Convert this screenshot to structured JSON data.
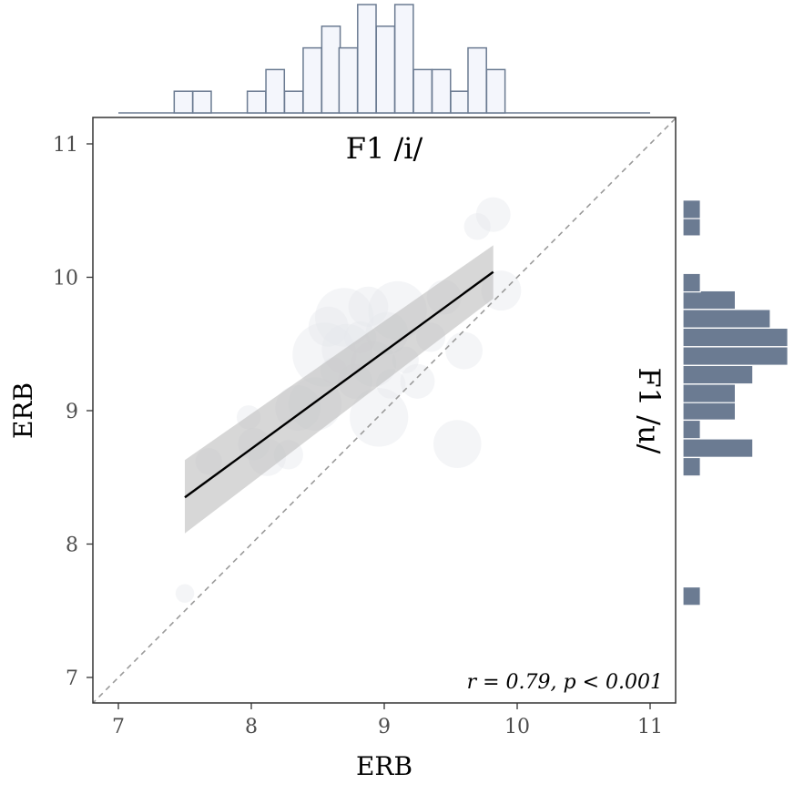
{
  "chart_data": {
    "type": "scatter",
    "x_label": "ERB",
    "y_label": "ERB",
    "x_title": "F1 /i/",
    "y_title": "F1 /u/",
    "x_range": [
      6.8,
      11.2
    ],
    "y_range": [
      6.8,
      11.2
    ],
    "x_ticks": [
      7,
      8,
      9,
      10,
      11
    ],
    "y_ticks": [
      7,
      8,
      9,
      10,
      11
    ],
    "x_tick_labels": [
      "7",
      "8",
      "9",
      "10",
      "11"
    ],
    "y_tick_labels": [
      "7",
      "8",
      "9",
      "10",
      "11"
    ],
    "annotation": "r = 0.79, p < 0.001",
    "identity_line": true,
    "regression": {
      "x_start": 7.5,
      "y_start": 8.35,
      "x_end": 9.82,
      "y_end": 10.04,
      "ci_lower": [
        8.08,
        9.84
      ],
      "ci_upper": [
        8.63,
        10.24
      ]
    },
    "points": [
      {
        "x": 7.5,
        "y": 7.63,
        "r": 0.07
      },
      {
        "x": 7.68,
        "y": 8.62,
        "r": 0.1
      },
      {
        "x": 7.98,
        "y": 8.95,
        "r": 0.09
      },
      {
        "x": 8.02,
        "y": 8.75,
        "r": 0.12
      },
      {
        "x": 8.12,
        "y": 8.65,
        "r": 0.14
      },
      {
        "x": 8.28,
        "y": 8.67,
        "r": 0.11
      },
      {
        "x": 8.35,
        "y": 9.02,
        "r": 0.17
      },
      {
        "x": 8.48,
        "y": 9.05,
        "r": 0.2
      },
      {
        "x": 8.55,
        "y": 9.42,
        "r": 0.24
      },
      {
        "x": 8.58,
        "y": 9.63,
        "r": 0.15
      },
      {
        "x": 8.62,
        "y": 9.3,
        "r": 0.1
      },
      {
        "x": 8.72,
        "y": 9.46,
        "r": 0.19
      },
      {
        "x": 8.7,
        "y": 9.7,
        "r": 0.22
      },
      {
        "x": 8.78,
        "y": 9.22,
        "r": 0.13
      },
      {
        "x": 8.82,
        "y": 9.55,
        "r": 0.12
      },
      {
        "x": 8.88,
        "y": 9.78,
        "r": 0.15
      },
      {
        "x": 8.92,
        "y": 9.35,
        "r": 0.17
      },
      {
        "x": 8.96,
        "y": 8.95,
        "r": 0.22
      },
      {
        "x": 9.02,
        "y": 9.58,
        "r": 0.16
      },
      {
        "x": 9.05,
        "y": 9.2,
        "r": 0.11
      },
      {
        "x": 9.1,
        "y": 9.75,
        "r": 0.22
      },
      {
        "x": 9.16,
        "y": 9.38,
        "r": 0.1
      },
      {
        "x": 9.25,
        "y": 9.22,
        "r": 0.13
      },
      {
        "x": 9.35,
        "y": 9.55,
        "r": 0.11
      },
      {
        "x": 9.45,
        "y": 9.85,
        "r": 0.13
      },
      {
        "x": 9.55,
        "y": 8.75,
        "r": 0.18
      },
      {
        "x": 9.6,
        "y": 9.45,
        "r": 0.14
      },
      {
        "x": 9.7,
        "y": 10.38,
        "r": 0.1
      },
      {
        "x": 9.82,
        "y": 10.47,
        "r": 0.13
      },
      {
        "x": 9.88,
        "y": 9.9,
        "r": 0.15
      }
    ],
    "x_histogram": {
      "bin_width": 0.1385,
      "bins": [
        {
          "start": 7.42,
          "count": 1
        },
        {
          "start": 7.56,
          "count": 1
        },
        {
          "start": 7.97,
          "count": 1
        },
        {
          "start": 8.11,
          "count": 2
        },
        {
          "start": 8.25,
          "count": 1
        },
        {
          "start": 8.39,
          "count": 3
        },
        {
          "start": 8.53,
          "count": 4
        },
        {
          "start": 8.66,
          "count": 3
        },
        {
          "start": 8.8,
          "count": 5
        },
        {
          "start": 8.94,
          "count": 4
        },
        {
          "start": 9.08,
          "count": 5
        },
        {
          "start": 9.22,
          "count": 2
        },
        {
          "start": 9.36,
          "count": 2
        },
        {
          "start": 9.5,
          "count": 1
        },
        {
          "start": 9.63,
          "count": 3
        },
        {
          "start": 9.77,
          "count": 2
        }
      ]
    },
    "y_histogram": {
      "bin_width": 0.1385,
      "bins": [
        {
          "start": 7.54,
          "count": 1
        },
        {
          "start": 8.51,
          "count": 1
        },
        {
          "start": 8.65,
          "count": 4
        },
        {
          "start": 8.79,
          "count": 1
        },
        {
          "start": 8.93,
          "count": 3
        },
        {
          "start": 9.06,
          "count": 3
        },
        {
          "start": 9.2,
          "count": 4
        },
        {
          "start": 9.34,
          "count": 6
        },
        {
          "start": 9.48,
          "count": 6
        },
        {
          "start": 9.62,
          "count": 5
        },
        {
          "start": 9.76,
          "count": 3
        },
        {
          "start": 9.89,
          "count": 1
        },
        {
          "start": 10.31,
          "count": 1
        },
        {
          "start": 10.44,
          "count": 1
        }
      ]
    },
    "colors": {
      "point_fill": "#e4e7ec",
      "ci_fill": "#bdbdbd",
      "regression_line": "#000000",
      "identity_line": "#9a9a9a",
      "top_hist_fill": "#f4f6fc",
      "top_hist_stroke": "#6b7b92",
      "side_hist_fill": "#6b7b92",
      "side_hist_stroke": "#ffffff",
      "panel_border": "#333333",
      "tick_label": "#4d4d4d"
    }
  }
}
